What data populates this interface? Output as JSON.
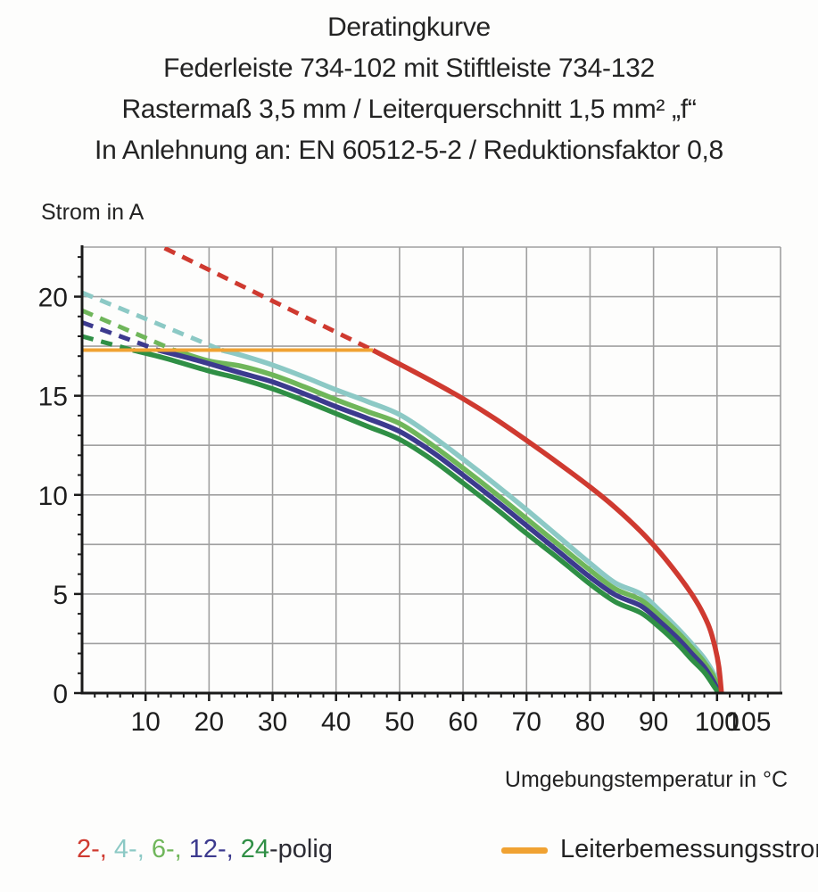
{
  "title": {
    "line1": "Deratingkurve",
    "line2": "Federleiste 734-102 mit Stiftleiste 734-132",
    "line3": "Rastermaß 3,5 mm / Leiterquerschnitt 1,5 mm² „f“",
    "line4": "In Anlehnung an: EN 60512-5-2 / Reduktionsfaktor 0,8"
  },
  "axes": {
    "y_title": "Strom in A",
    "x_title": "Umgebungstemperatur in °C"
  },
  "legend": {
    "poles_parts": [
      {
        "label": "2-, ",
        "color": "#cf3a30"
      },
      {
        "label": "4-, ",
        "color": "#8cc9c5"
      },
      {
        "label": "6-, ",
        "color": "#6fb65a"
      },
      {
        "label": "12-, ",
        "color": "#3c3a8e"
      },
      {
        "label": "24",
        "color": "#2f8f45"
      },
      {
        "label": "-polig",
        "color": "#2b2b33"
      }
    ],
    "rated_current_label": "Leiterbemessungsstrom",
    "rated_current_color": "#f0a232"
  },
  "chart_data": {
    "type": "line",
    "xlabel": "Umgebungstemperatur in °C",
    "ylabel": "Strom in A",
    "xlim": [
      0,
      110
    ],
    "ylim": [
      0,
      22.5
    ],
    "grid": true,
    "grid_x_step": 10,
    "grid_y_step": 2.5,
    "x_ticks_labeled": [
      10,
      20,
      30,
      40,
      50,
      60,
      70,
      80,
      90,
      100,
      105
    ],
    "x_minor_tick_step": 2,
    "y_ticks_labeled": [
      0,
      5,
      10,
      15,
      20
    ],
    "y_minor_tick_step": 1,
    "grid_color": "#a0a0a0",
    "axis_color": "#1a1a1a",
    "tick_label_color": "#1d1d1d",
    "rated_current": {
      "label": "Leiterbemessungsstrom",
      "value_A": 17.3,
      "x_range_C": [
        0,
        45.8
      ],
      "color": "#f0a232"
    },
    "series": [
      {
        "name": "2-polig",
        "color": "#cf3a30",
        "z": 10,
        "dashed_extrapolation": [
          [
            13,
            22.45
          ],
          [
            45.8,
            17.3
          ]
        ],
        "solid": [
          [
            45.8,
            17.3
          ],
          [
            50,
            16.6
          ],
          [
            55,
            15.75
          ],
          [
            60,
            14.85
          ],
          [
            65,
            13.85
          ],
          [
            70,
            12.75
          ],
          [
            75,
            11.6
          ],
          [
            80,
            10.4
          ],
          [
            84,
            9.35
          ],
          [
            88,
            8.15
          ],
          [
            91,
            7.1
          ],
          [
            94,
            5.9
          ],
          [
            96,
            5.0
          ],
          [
            97.5,
            4.2
          ],
          [
            98.8,
            3.3
          ],
          [
            99.7,
            2.3
          ],
          [
            100.3,
            1.3
          ],
          [
            100.7,
            0
          ]
        ]
      },
      {
        "name": "4-polig",
        "color": "#8cc9c5",
        "z": 1,
        "dashed_extrapolation": [
          [
            0,
            20.2
          ],
          [
            22,
            17.3
          ]
        ],
        "solid": [
          [
            22,
            17.3
          ],
          [
            25,
            17.05
          ],
          [
            30,
            16.55
          ],
          [
            35,
            15.95
          ],
          [
            40,
            15.3
          ],
          [
            45,
            14.7
          ],
          [
            50,
            14.05
          ],
          [
            55,
            13.0
          ],
          [
            60,
            11.8
          ],
          [
            65,
            10.55
          ],
          [
            70,
            9.25
          ],
          [
            75,
            7.9
          ],
          [
            80,
            6.55
          ],
          [
            84,
            5.55
          ],
          [
            88,
            5.0
          ],
          [
            91,
            4.15
          ],
          [
            94,
            3.2
          ],
          [
            96,
            2.5
          ],
          [
            98,
            1.75
          ],
          [
            99.5,
            0.95
          ],
          [
            100.4,
            0
          ]
        ]
      },
      {
        "name": "6-polig",
        "color": "#6fb65a",
        "z": 2,
        "dashed_extrapolation": [
          [
            0,
            19.3
          ],
          [
            14.5,
            17.3
          ]
        ],
        "solid": [
          [
            14.5,
            17.3
          ],
          [
            20,
            16.75
          ],
          [
            25,
            16.5
          ],
          [
            30,
            16.05
          ],
          [
            35,
            15.45
          ],
          [
            40,
            14.8
          ],
          [
            45,
            14.2
          ],
          [
            50,
            13.6
          ],
          [
            55,
            12.55
          ],
          [
            60,
            11.35
          ],
          [
            65,
            10.1
          ],
          [
            70,
            8.8
          ],
          [
            75,
            7.5
          ],
          [
            80,
            6.2
          ],
          [
            84,
            5.25
          ],
          [
            88,
            4.7
          ],
          [
            91,
            3.9
          ],
          [
            94,
            3.0
          ],
          [
            96,
            2.3
          ],
          [
            98,
            1.55
          ],
          [
            99.6,
            0.75
          ],
          [
            100.35,
            0
          ]
        ]
      },
      {
        "name": "12-polig",
        "color": "#3c3a8e",
        "z": 3,
        "dashed_extrapolation": [
          [
            0,
            18.7
          ],
          [
            12,
            17.3
          ]
        ],
        "solid": [
          [
            12,
            17.3
          ],
          [
            18,
            16.8
          ],
          [
            25,
            16.15
          ],
          [
            30,
            15.7
          ],
          [
            35,
            15.1
          ],
          [
            40,
            14.45
          ],
          [
            45,
            13.85
          ],
          [
            50,
            13.2
          ],
          [
            55,
            12.2
          ],
          [
            60,
            11.0
          ],
          [
            65,
            9.75
          ],
          [
            70,
            8.45
          ],
          [
            75,
            7.15
          ],
          [
            80,
            5.85
          ],
          [
            84,
            4.95
          ],
          [
            88,
            4.4
          ],
          [
            91,
            3.6
          ],
          [
            94,
            2.7
          ],
          [
            96,
            2.0
          ],
          [
            98,
            1.3
          ],
          [
            99.5,
            0.55
          ],
          [
            100.3,
            0
          ]
        ]
      },
      {
        "name": "24-polig",
        "color": "#2f8f45",
        "z": 4,
        "dashed_extrapolation": [
          [
            0,
            18.0
          ],
          [
            8,
            17.3
          ]
        ],
        "solid": [
          [
            8,
            17.3
          ],
          [
            13,
            16.9
          ],
          [
            20,
            16.25
          ],
          [
            25,
            15.85
          ],
          [
            30,
            15.35
          ],
          [
            35,
            14.75
          ],
          [
            40,
            14.1
          ],
          [
            45,
            13.45
          ],
          [
            50,
            12.8
          ],
          [
            55,
            11.8
          ],
          [
            60,
            10.6
          ],
          [
            65,
            9.35
          ],
          [
            70,
            8.05
          ],
          [
            75,
            6.8
          ],
          [
            80,
            5.5
          ],
          [
            84,
            4.6
          ],
          [
            88,
            4.05
          ],
          [
            91,
            3.3
          ],
          [
            94,
            2.4
          ],
          [
            96,
            1.7
          ],
          [
            98,
            1.05
          ],
          [
            99.4,
            0.4
          ],
          [
            100.25,
            0
          ]
        ]
      }
    ]
  }
}
